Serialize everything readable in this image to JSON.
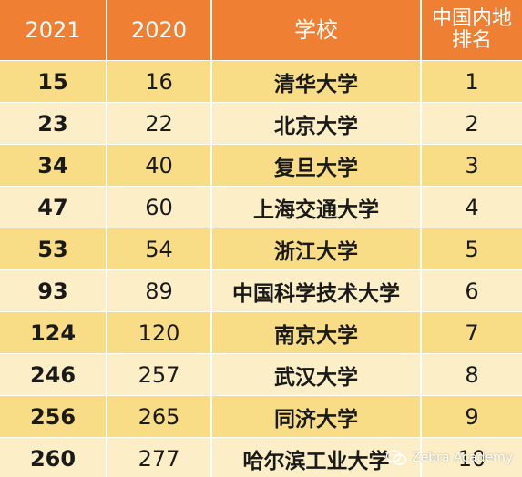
{
  "header": {
    "col_2021": "2021",
    "col_2020": "2020",
    "col_school": "学校",
    "col_rank": "中国内地排名"
  },
  "rows": [
    {
      "y2021": "15",
      "y2020": "16",
      "school": "清华大学",
      "rank": "1"
    },
    {
      "y2021": "23",
      "y2020": "22",
      "school": "北京大学",
      "rank": "2"
    },
    {
      "y2021": "34",
      "y2020": "40",
      "school": "复旦大学",
      "rank": "3"
    },
    {
      "y2021": "47",
      "y2020": "60",
      "school": "上海交通大学",
      "rank": "4"
    },
    {
      "y2021": "53",
      "y2020": "54",
      "school": "浙江大学",
      "rank": "5"
    },
    {
      "y2021": "93",
      "y2020": "89",
      "school": "中国科学技术大学",
      "rank": "6"
    },
    {
      "y2021": "124",
      "y2020": "120",
      "school": "南京大学",
      "rank": "7"
    },
    {
      "y2021": "246",
      "y2020": "257",
      "school": "武汉大学",
      "rank": "8"
    },
    {
      "y2021": "256",
      "y2020": "265",
      "school": "同济大学",
      "rank": "9"
    },
    {
      "y2021": "260",
      "y2020": "277",
      "school": "哈尔滨工业大学",
      "rank": "10"
    }
  ],
  "watermark": {
    "text": "Zebra Academy",
    "icon": "wechat-icon"
  },
  "colors": {
    "header_bg": "#ef7f33",
    "row_odd": "#f9dc86",
    "row_even": "#fcefc7"
  }
}
